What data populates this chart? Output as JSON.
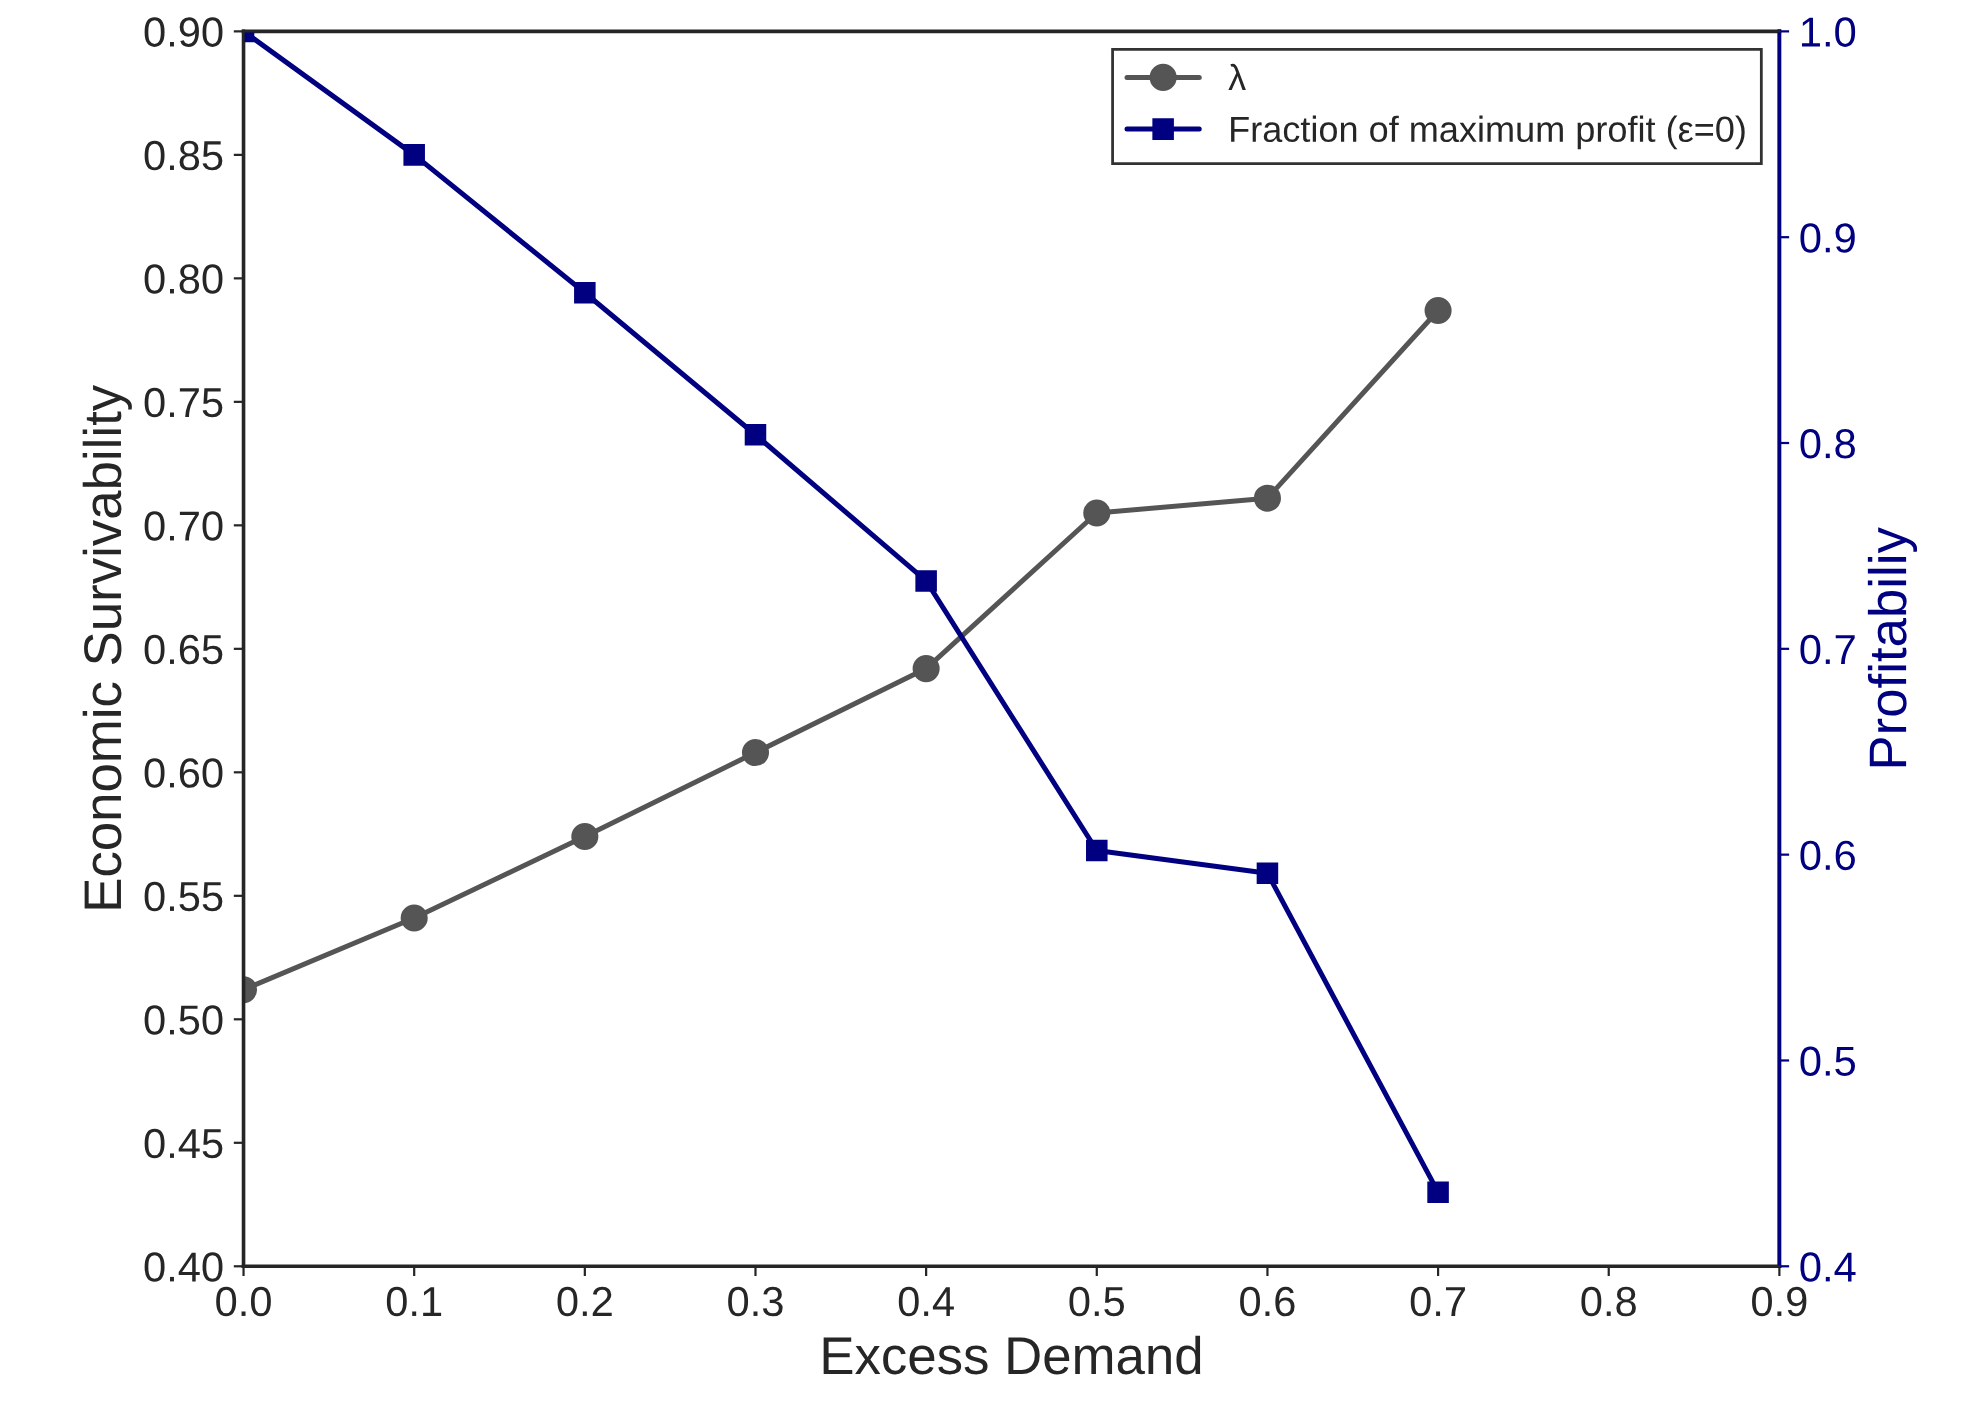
{
  "chart_data": {
    "type": "line",
    "xlabel": "Excess Demand",
    "ylabel": "Economic Survivability",
    "y2label": "Profitabiliy",
    "x": [
      0.0,
      0.1,
      0.2,
      0.3,
      0.4,
      0.5,
      0.6,
      0.7
    ],
    "series": [
      {
        "name": "λ",
        "color": "#555555",
        "marker": "circle",
        "values": [
          0.512,
          0.541,
          0.574,
          0.608,
          0.642,
          0.705,
          0.711,
          0.787
        ]
      },
      {
        "name": "Fraction of maximum profit (ε=0)",
        "color": "#000080",
        "marker": "square",
        "axis": "y2",
        "values": [
          1.0,
          0.94,
          0.873,
          0.804,
          0.733,
          0.602,
          0.591,
          0.436
        ]
      }
    ],
    "xlim": [
      0.0,
      0.9
    ],
    "xticks": [
      {
        "value": 0,
        "label": "0.0"
      },
      0.1,
      0.2,
      0.3,
      0.4,
      0.5,
      0.6,
      0.7,
      0.8,
      0.9
    ],
    "ylim": [
      0.4,
      0.9
    ],
    "yticks": [
      {
        "value": 0.4,
        "label": "0.40"
      },
      0.45,
      {
        "value": 0.5,
        "label": "0.50"
      },
      0.55,
      {
        "value": 0.6,
        "label": "0.60"
      },
      0.65,
      {
        "value": 0.7,
        "label": "0.70"
      },
      0.75,
      {
        "value": 0.8,
        "label": "0.80"
      },
      0.85,
      {
        "value": 0.9,
        "label": "0.90"
      }
    ],
    "y2lim": [
      0.4,
      1.0
    ],
    "y2ticks": [
      0.4,
      0.5,
      0.6,
      0.7,
      0.8,
      0.9,
      {
        "value": 1,
        "label": "1.0"
      }
    ],
    "grid": false,
    "legend": "top right",
    "line_style": "solid"
  }
}
